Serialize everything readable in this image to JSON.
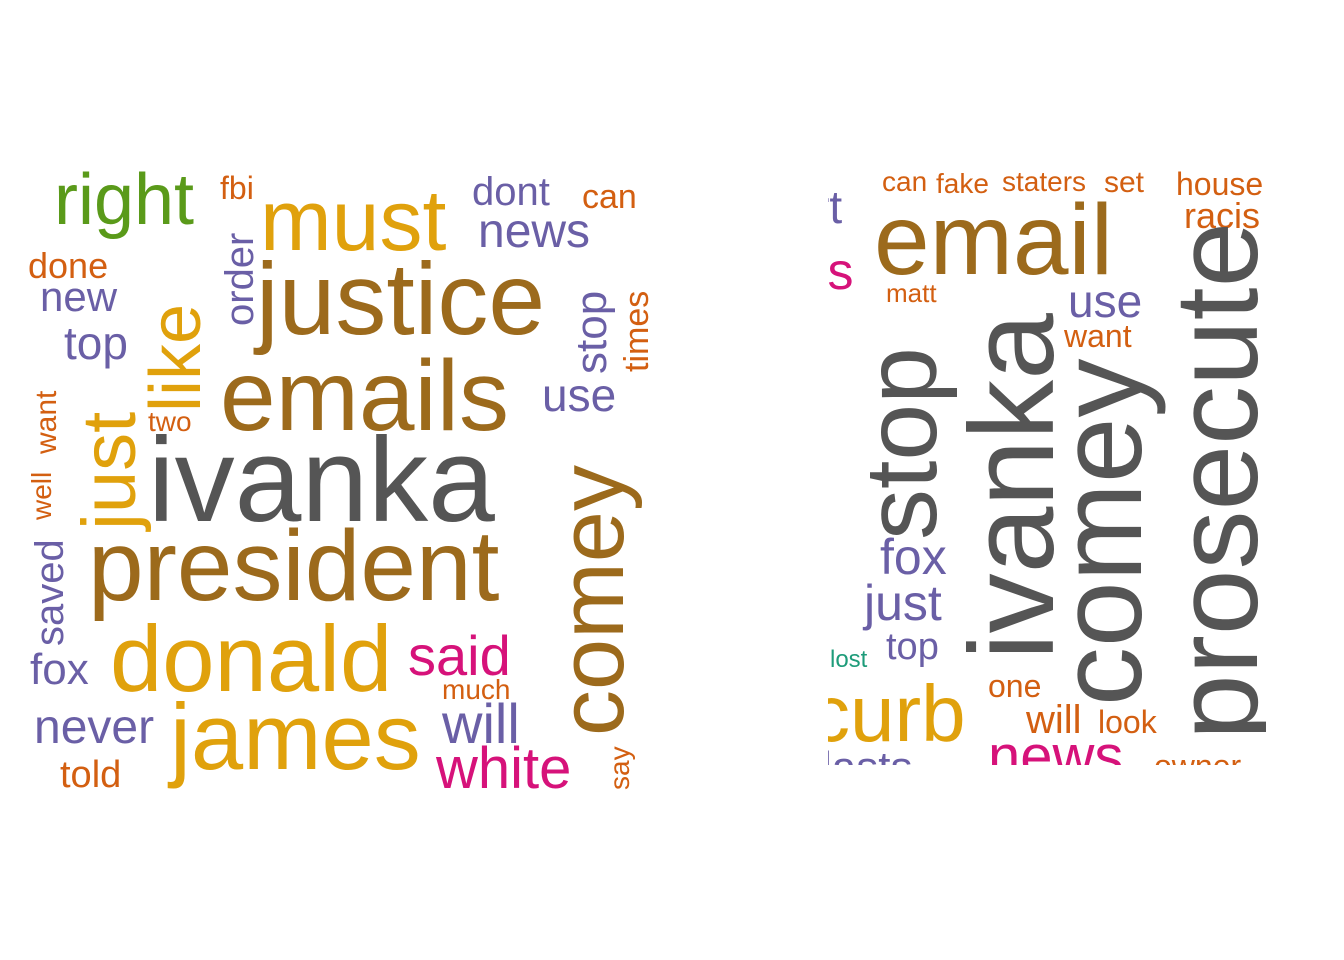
{
  "colors": {
    "gray": "#555555",
    "brown": "#9c6a1c",
    "gold": "#e0a10c",
    "purple": "#6a5fa6",
    "orange": "#d35f11",
    "green": "#5a9a1a",
    "magenta": "#d6127a",
    "teal": "#1e9c7a"
  },
  "left_cloud": {
    "words": [
      "right",
      "fbi",
      "dont",
      "can",
      "must",
      "news",
      "done",
      "order",
      "justice",
      "new",
      "like",
      "stop",
      "times",
      "top",
      "emails",
      "use",
      "want",
      "just",
      "two",
      "well",
      "ivanka",
      "comey",
      "saved",
      "president",
      "donald",
      "said",
      "fox",
      "much",
      "will",
      "never",
      "james",
      "white",
      "told",
      "say"
    ]
  },
  "right_cloud": {
    "words": [
      "rt",
      "can",
      "fake",
      "staters",
      "set",
      "house",
      "racis",
      "email",
      "ls",
      "matt",
      "use",
      "want",
      "stop",
      "ivanka",
      "comey",
      "prosecute",
      "fox",
      "just",
      "top",
      "lost",
      "curb",
      "one",
      "will",
      "look",
      "news",
      "owner",
      "lasts"
    ]
  }
}
